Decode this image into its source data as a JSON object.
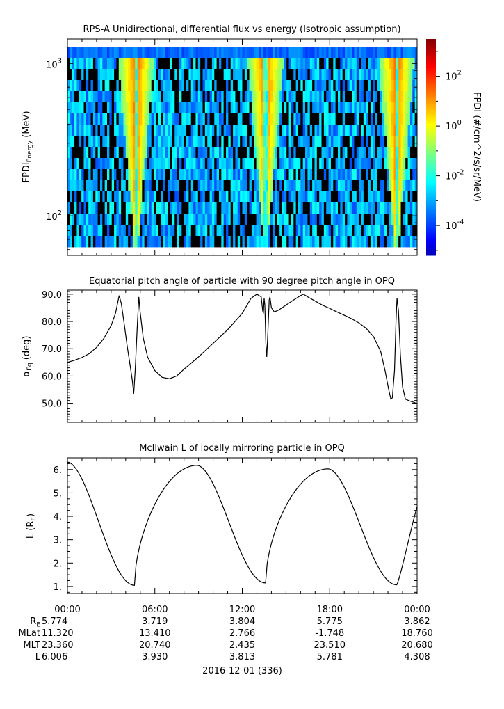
{
  "chart_data": [
    {
      "type": "heatmap",
      "title": "RPS-A Unidirectional, differential flux vs energy (Isotropic assumption)",
      "ylabel_main": "FPDI",
      "ylabel_sub": "Energy",
      "ylabel_unit": " (MeV)",
      "yscale": "log",
      "ylim": [
        55,
        1450
      ],
      "yticks": [
        {
          "value": 100,
          "label": "10",
          "exp": "2"
        },
        {
          "value": 1000,
          "label": "10",
          "exp": "3"
        }
      ],
      "xlim_hours": [
        0,
        24
      ],
      "colorbar": {
        "label": "FPDI (#/cm^2/s/sr/MeV)",
        "scale": "log",
        "range_log10": [
          -5.2,
          3.5
        ],
        "ticks": [
          {
            "value": -4,
            "label": "10",
            "exp": "-4"
          },
          {
            "value": -2,
            "label": "10",
            "exp": "-2"
          },
          {
            "value": 0,
            "label": "10",
            "exp": "0"
          },
          {
            "value": 2,
            "label": "10",
            "exp": "2"
          }
        ]
      },
      "bright_bands_hours": [
        4.7,
        13.6,
        22.6
      ]
    },
    {
      "type": "line",
      "title": "Equatorial pitch angle of particle with 90 degree pitch angle in OPQ",
      "ylabel_main": "α",
      "ylabel_sub": "Eq",
      "ylabel_unit": " (deg)",
      "ylim": [
        43,
        91.5
      ],
      "yticks": [
        50,
        60,
        70,
        80,
        90
      ],
      "xlim_hours": [
        0,
        24
      ],
      "points": [
        [
          0,
          65
        ],
        [
          0.5,
          65.8
        ],
        [
          1,
          66.8
        ],
        [
          1.5,
          68.2
        ],
        [
          2,
          70.5
        ],
        [
          2.5,
          73.8
        ],
        [
          3,
          78.5
        ],
        [
          3.3,
          83
        ],
        [
          3.55,
          89.5
        ],
        [
          3.7,
          86.5
        ],
        [
          3.9,
          79
        ],
        [
          4.1,
          71
        ],
        [
          4.3,
          64
        ],
        [
          4.45,
          58.5
        ],
        [
          4.55,
          53.5
        ],
        [
          4.65,
          62
        ],
        [
          4.8,
          79
        ],
        [
          4.9,
          89
        ],
        [
          4.98,
          84
        ],
        [
          5.2,
          74
        ],
        [
          5.5,
          67
        ],
        [
          6,
          62
        ],
        [
          6.5,
          59.5
        ],
        [
          7,
          59
        ],
        [
          7.5,
          60
        ],
        [
          8,
          62.5
        ],
        [
          9,
          67
        ],
        [
          10,
          72
        ],
        [
          11,
          77
        ],
        [
          12,
          83
        ],
        [
          12.6,
          88.5
        ],
        [
          13,
          90
        ],
        [
          13.3,
          89
        ],
        [
          13.4,
          84
        ],
        [
          13.45,
          83
        ],
        [
          13.5,
          88.5
        ],
        [
          13.55,
          86
        ],
        [
          13.62,
          72
        ],
        [
          13.68,
          67
        ],
        [
          13.75,
          75
        ],
        [
          13.85,
          88
        ],
        [
          13.9,
          89
        ],
        [
          14,
          85
        ],
        [
          14.2,
          83.5
        ],
        [
          14.5,
          84.2
        ],
        [
          15,
          86
        ],
        [
          15.5,
          87.8
        ],
        [
          16,
          89.5
        ],
        [
          16.2,
          90
        ],
        [
          16.5,
          89
        ],
        [
          17,
          87.5
        ],
        [
          17.5,
          86
        ],
        [
          18,
          84.8
        ],
        [
          18.5,
          83.5
        ],
        [
          19,
          82.3
        ],
        [
          19.5,
          81
        ],
        [
          20,
          79.5
        ],
        [
          20.5,
          77.5
        ],
        [
          21,
          74.5
        ],
        [
          21.5,
          69
        ],
        [
          21.8,
          62
        ],
        [
          22.05,
          55
        ],
        [
          22.2,
          51.5
        ],
        [
          22.3,
          52
        ],
        [
          22.45,
          62
        ],
        [
          22.55,
          80
        ],
        [
          22.62,
          88.5
        ],
        [
          22.72,
          84
        ],
        [
          22.85,
          68
        ],
        [
          23,
          56
        ],
        [
          23.2,
          51.5
        ],
        [
          23.5,
          50.8
        ],
        [
          23.8,
          50.3
        ],
        [
          24,
          49.8
        ]
      ]
    },
    {
      "type": "line",
      "title": "McIlwain L of locally mirroring particle in OPQ",
      "ylabel_main": "L (R",
      "ylabel_sub": "E",
      "ylabel_unit": ")",
      "ylim": [
        0.7,
        6.5
      ],
      "yticks": [
        1,
        2,
        3,
        4,
        5,
        6
      ],
      "xlim_hours": [
        0,
        24
      ],
      "minima_hours": [
        4.6,
        13.6,
        22.6
      ],
      "minima_L": [
        1.05,
        1.15,
        1.07
      ],
      "maxima_hours": [
        0,
        8.9,
        17.9
      ],
      "maxima_L": [
        6.32,
        6.18,
        6.03
      ],
      "end_L": 4.42
    }
  ],
  "xaxis": {
    "tick_labels": [
      "00:00",
      "06:00",
      "12:00",
      "18:00",
      "00:00"
    ],
    "rows": [
      {
        "label_main": "R",
        "label_sub": "E",
        "values": [
          "5.774",
          "3.719",
          "3.804",
          "5.775",
          "3.862"
        ]
      },
      {
        "label_main": "MLat",
        "label_sub": "",
        "values": [
          "11.320",
          "13.410",
          "2.766",
          "-1.748",
          "18.760"
        ]
      },
      {
        "label_main": "MLT",
        "label_sub": "",
        "values": [
          "23.360",
          "20.740",
          "2.435",
          "23.510",
          "20.680"
        ]
      },
      {
        "label_main": "L",
        "label_sub": "",
        "values": [
          "6.006",
          "3.930",
          "3.813",
          "5.781",
          "4.308"
        ]
      }
    ],
    "date_label": "2016-12-01 (336)"
  },
  "colors": {
    "line": "#000000",
    "colormap": [
      "#00008f",
      "#0000ff",
      "#00ffff",
      "#00ff00",
      "#ffff00",
      "#ff7f00",
      "#ff0000"
    ]
  }
}
